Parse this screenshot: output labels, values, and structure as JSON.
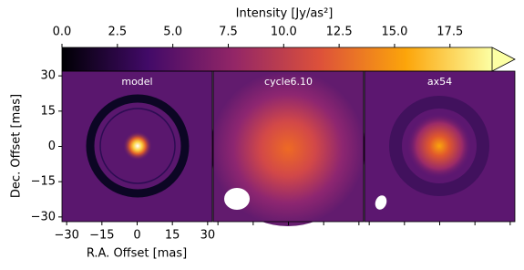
{
  "chart_data": {
    "type": "image",
    "colorbar": {
      "label": "Intensity [Jy/as²]",
      "lim": [
        0,
        19.4
      ],
      "ticks": [
        {
          "value": 0,
          "label": "0.0"
        },
        2.5,
        {
          "value": 5,
          "label": "5.0"
        },
        7.5,
        {
          "value": 10,
          "label": "10.0"
        },
        12.5,
        {
          "value": 15,
          "label": "15.0"
        },
        17.5
      ],
      "extend": "max",
      "cmap": [
        "#000004",
        "#420a68",
        "#932667",
        "#dd513a",
        "#fca50a",
        "#fcffa4"
      ]
    },
    "panels": [
      {
        "title": "model"
      },
      {
        "title": "cycle6.10"
      },
      {
        "title": "ax54"
      }
    ],
    "xlabel": "R.A. Offset [mas]",
    "ylabel": "Dec. Offset [mas]",
    "xlim": [
      -32,
      32
    ],
    "ylim": [
      -32,
      32
    ],
    "xticks": [
      {
        "value": -30,
        "label": "−30"
      },
      {
        "value": -15,
        "label": "−15"
      },
      0,
      15,
      30
    ],
    "yticks": [
      {
        "value": -30,
        "label": "−30"
      },
      {
        "value": -15,
        "label": "−15"
      },
      0,
      15,
      30
    ]
  }
}
